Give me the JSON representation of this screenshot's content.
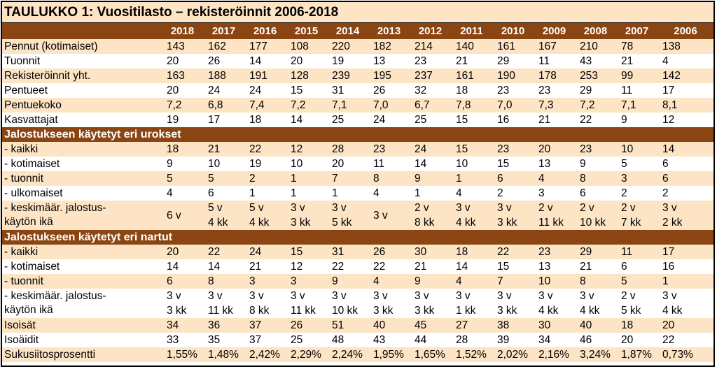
{
  "title": "TAULUKKO 1: Vuositilasto – rekisteröinnit 2006-2018",
  "years": [
    "2018",
    "2017",
    "2016",
    "2015",
    "2014",
    "2013",
    "2012",
    "2011",
    "2010",
    "2009",
    "2008",
    "2007",
    "2006"
  ],
  "section_urokset": "Jalostukseen käytetyt eri urokset",
  "section_nartut": "Jalostukseen käytetyt eri nartut",
  "rows": [
    {
      "label": "Pennut (kotimaiset)",
      "values": [
        "143",
        "162",
        "177",
        "108",
        "220",
        "182",
        "214",
        "140",
        "161",
        "167",
        "210",
        "78",
        "138"
      ]
    },
    {
      "label": "Tuonnit",
      "values": [
        "20",
        "26",
        "14",
        "20",
        "19",
        "13",
        "23",
        "21",
        "29",
        "11",
        "43",
        "21",
        "4"
      ]
    },
    {
      "label": "Rekisteröinnit yht.",
      "values": [
        "163",
        "188",
        "191",
        "128",
        "239",
        "195",
        "237",
        "161",
        "190",
        "178",
        "253",
        "99",
        "142"
      ]
    },
    {
      "label": "Pentueet",
      "values": [
        "20",
        "24",
        "24",
        "15",
        "31",
        "26",
        "32",
        "18",
        "23",
        "23",
        "29",
        "11",
        "17"
      ]
    },
    {
      "label": "Pentuekoko",
      "values": [
        "7,2",
        "6,8",
        "7,4",
        "7,2",
        "7,1",
        "7,0",
        "6,7",
        "7,8",
        "7,0",
        "7,3",
        "7,2",
        "7,1",
        "8,1"
      ]
    },
    {
      "label": "Kasvattajat",
      "values": [
        "19",
        "17",
        "18",
        "14",
        "25",
        "24",
        "25",
        "15",
        "16",
        "21",
        "22",
        "9",
        "12"
      ]
    }
  ],
  "urokset_rows": [
    {
      "label": "- kaikki",
      "values": [
        "18",
        "21",
        "22",
        "12",
        "28",
        "23",
        "24",
        "15",
        "23",
        "20",
        "23",
        "10",
        "14"
      ]
    },
    {
      "label": "- kotimaiset",
      "values": [
        "9",
        "10",
        "19",
        "10",
        "20",
        "11",
        "14",
        "10",
        "15",
        "13",
        "9",
        "5",
        "6"
      ]
    },
    {
      "label": "- tuonnit",
      "values": [
        "5",
        "5",
        "2",
        "1",
        "7",
        "8",
        "9",
        "1",
        "6",
        "4",
        "8",
        "3",
        "6"
      ]
    },
    {
      "label": "- ulkomaiset",
      "values": [
        "4",
        "6",
        "1",
        "1",
        "1",
        "4",
        "1",
        "4",
        "2",
        "3",
        "6",
        "2",
        "2"
      ]
    }
  ],
  "urokset_age": {
    "label_line1": "- keskimäär. jalostus-",
    "label_line2": "käytön ikä",
    "line1": [
      "6 v",
      "5 v",
      "5 v",
      "3 v",
      "3 v",
      "",
      "2 v",
      "3 v",
      "3 v",
      "2 v",
      "2 v",
      "2 v",
      "3 v"
    ],
    "line2": [
      "",
      "4 kk",
      "4 kk",
      "3 kk",
      "5 kk",
      "",
      "8 kk",
      "4 kk",
      "3 kk",
      "11 kk",
      "10 kk",
      "7 kk",
      "2 kk"
    ],
    "middle_2013": "3 v"
  },
  "nartut_rows": [
    {
      "label": "- kaikki",
      "values": [
        "20",
        "22",
        "24",
        "15",
        "31",
        "26",
        "30",
        "18",
        "22",
        "23",
        "29",
        "11",
        "17"
      ]
    },
    {
      "label": "- kotimaiset",
      "values": [
        "14",
        "14",
        "21",
        "12",
        "22",
        "22",
        "21",
        "14",
        "15",
        "13",
        "21",
        "6",
        "16"
      ]
    },
    {
      "label": "- tuonnit",
      "values": [
        "6",
        "8",
        "3",
        "3",
        "9",
        "4",
        "9",
        "4",
        "7",
        "10",
        "8",
        "5",
        "1"
      ]
    }
  ],
  "nartut_age": {
    "label_line1": "- keskimäär. jalostus-",
    "label_line2": "käytön ikä",
    "line1": [
      "3 v",
      "3 v",
      "3 v",
      "3 v",
      "3 v",
      "3 v",
      "3 v",
      "3 v",
      "3 v",
      "3 v",
      "3 v",
      "2 v",
      "3 v"
    ],
    "line2": [
      "3 kk",
      "11 kk",
      "8 kk",
      "11 kk",
      "10 kk",
      "3 kk",
      "3 kk",
      "1 kk",
      "3 kk",
      "4 kk",
      "4 kk",
      "5 kk",
      "4 kk"
    ]
  },
  "tail_rows": [
    {
      "label": "Isoisät",
      "values": [
        "34",
        "36",
        "37",
        "26",
        "51",
        "40",
        "45",
        "27",
        "38",
        "30",
        "40",
        "18",
        "20"
      ]
    },
    {
      "label": "Isoäidit",
      "values": [
        "33",
        "35",
        "37",
        "25",
        "48",
        "43",
        "44",
        "28",
        "39",
        "34",
        "46",
        "20",
        "22"
      ]
    },
    {
      "label": "Sukusiitosprosentti",
      "values": [
        "1,55%",
        "1,48%",
        "2,42%",
        "2,29%",
        "2,24%",
        "1,95%",
        "1,65%",
        "1,52%",
        "2,02%",
        "2,16%",
        "3,24%",
        "1,87%",
        "0,73%"
      ]
    }
  ]
}
